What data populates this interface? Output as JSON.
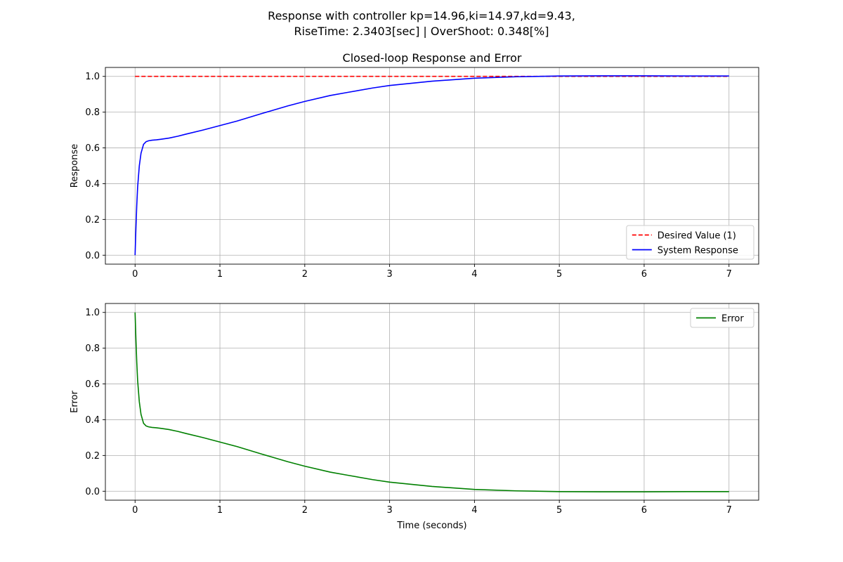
{
  "figure": {
    "suptitle_line1": "Response with controller kp=14.96,ki=14.97,kd=9.43,",
    "suptitle_line2": "RiseTime: 2.3403[sec] | OverShoot: 0.348[%]"
  },
  "chart_data": [
    {
      "type": "line",
      "title": "Closed-loop Response and Error",
      "xlabel": "",
      "ylabel": "Response",
      "xlim": [
        -0.35,
        7.35
      ],
      "ylim": [
        -0.05,
        1.05
      ],
      "xticks": [
        0,
        1,
        2,
        3,
        4,
        5,
        6,
        7
      ],
      "yticks": [
        0.0,
        0.2,
        0.4,
        0.6,
        0.8,
        1.0
      ],
      "grid": true,
      "legend_position": "lower right",
      "series": [
        {
          "name": "Desired Value (1)",
          "color": "#ff0000",
          "dashed": true,
          "x": [
            0,
            7
          ],
          "y": [
            1.0,
            1.0
          ]
        },
        {
          "name": "System Response",
          "color": "#0000ff",
          "dashed": false,
          "x": [
            0,
            0.01,
            0.02,
            0.03,
            0.05,
            0.07,
            0.1,
            0.13,
            0.16,
            0.2,
            0.25,
            0.3,
            0.4,
            0.5,
            0.6,
            0.8,
            1.0,
            1.2,
            1.5,
            1.8,
            2.0,
            2.3,
            2.5,
            2.8,
            3.0,
            3.5,
            4.0,
            4.5,
            5.0,
            5.5,
            6.0,
            6.5,
            7.0
          ],
          "y": [
            0.0,
            0.15,
            0.28,
            0.38,
            0.5,
            0.57,
            0.62,
            0.635,
            0.64,
            0.643,
            0.645,
            0.648,
            0.655,
            0.665,
            0.677,
            0.7,
            0.725,
            0.75,
            0.793,
            0.835,
            0.86,
            0.893,
            0.91,
            0.935,
            0.949,
            0.973,
            0.99,
            0.998,
            1.002,
            1.003,
            1.003,
            1.002,
            1.002
          ]
        }
      ]
    },
    {
      "type": "line",
      "title": "",
      "xlabel": "Time (seconds)",
      "ylabel": "Error",
      "xlim": [
        -0.35,
        7.35
      ],
      "ylim": [
        -0.05,
        1.05
      ],
      "xticks": [
        0,
        1,
        2,
        3,
        4,
        5,
        6,
        7
      ],
      "yticks": [
        0.0,
        0.2,
        0.4,
        0.6,
        0.8,
        1.0
      ],
      "grid": true,
      "legend_position": "upper right",
      "series": [
        {
          "name": "Error",
          "color": "#008000",
          "dashed": false,
          "x": [
            0,
            0.01,
            0.02,
            0.03,
            0.05,
            0.07,
            0.1,
            0.13,
            0.16,
            0.2,
            0.25,
            0.3,
            0.4,
            0.5,
            0.6,
            0.8,
            1.0,
            1.2,
            1.5,
            1.8,
            2.0,
            2.3,
            2.5,
            2.8,
            3.0,
            3.5,
            4.0,
            4.5,
            5.0,
            5.5,
            6.0,
            6.5,
            7.0
          ],
          "y": [
            1.0,
            0.85,
            0.72,
            0.62,
            0.5,
            0.43,
            0.38,
            0.365,
            0.36,
            0.357,
            0.355,
            0.352,
            0.345,
            0.335,
            0.323,
            0.3,
            0.275,
            0.25,
            0.207,
            0.165,
            0.14,
            0.107,
            0.09,
            0.065,
            0.051,
            0.027,
            0.01,
            0.002,
            -0.002,
            -0.003,
            -0.003,
            -0.002,
            -0.002
          ]
        }
      ]
    }
  ]
}
